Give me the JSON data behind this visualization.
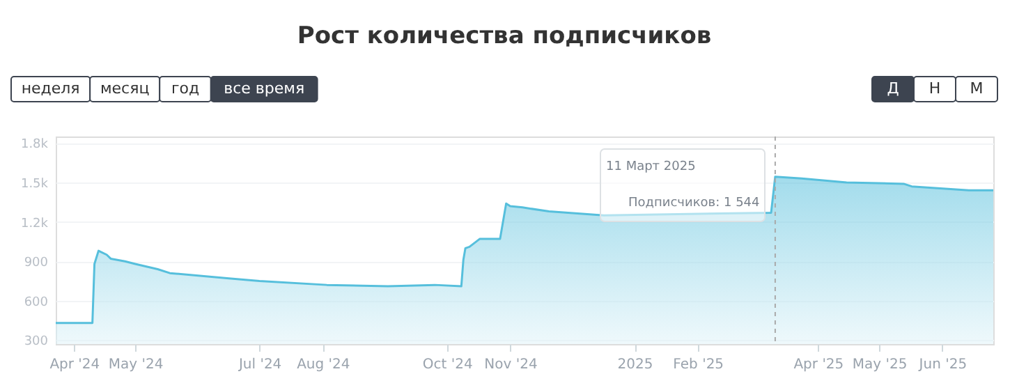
{
  "chart_data": {
    "type": "area",
    "title": "Рост количества подписчиков",
    "annotations": [
      "неделя",
      "месяц",
      "год",
      "все время",
      "Д",
      "Н",
      "М",
      "11 Март 2025",
      "Подписчиков:  1 544"
    ],
    "series": [
      {
        "color": "#56bfdc",
        "x": [
          "2024-03-23",
          "2024-04-01",
          "2024-04-10",
          "2024-04-11",
          "2024-04-13",
          "2024-04-17",
          "2024-04-19",
          "2024-04-26",
          "2024-05-01",
          "2024-05-12",
          "2024-05-18",
          "2024-06-16",
          "2024-07-01",
          "2024-08-03",
          "2024-09-02",
          "2024-09-25",
          "2024-10-08",
          "2024-10-09",
          "2024-10-10",
          "2024-10-12",
          "2024-10-17",
          "2024-10-27",
          "2024-10-30",
          "2024-11-01",
          "2024-11-07",
          "2024-11-20",
          "2024-12-17",
          "2025-03-09",
          "2025-03-11",
          "2025-03-15",
          "2025-03-24",
          "2025-04-15",
          "2025-05-13",
          "2025-05-17",
          "2025-06-14",
          "2025-06-26"
        ],
        "values": [
          430,
          430,
          430,
          880,
          980,
          950,
          920,
          900,
          880,
          840,
          810,
          770,
          750,
          720,
          710,
          720,
          710,
          910,
          1000,
          1010,
          1070,
          1070,
          1340,
          1320,
          1310,
          1280,
          1250,
          1270,
          1544,
          1540,
          1530,
          1500,
          1490,
          1470,
          1440,
          1440
        ]
      }
    ],
    "xlim": [
      "2024-03-23",
      "2025-06-26"
    ],
    "xticks": [
      {
        "value": "2024-04-01",
        "label": "Apr '24"
      },
      {
        "value": "2024-05-01",
        "label": "May '24"
      },
      {
        "value": "2024-07-01",
        "label": "Jul '24"
      },
      {
        "value": "2024-08-01",
        "label": "Aug '24"
      },
      {
        "value": "2024-10-01",
        "label": "Oct '24"
      },
      {
        "value": "2024-11-01",
        "label": "Nov '24"
      },
      {
        "value": "2025-01-01",
        "label": "2025"
      },
      {
        "value": "2025-02-01",
        "label": "Feb '25"
      },
      {
        "value": "2025-04-01",
        "label": "Apr '25"
      },
      {
        "value": "2025-05-01",
        "label": "May '25"
      },
      {
        "value": "2025-06-01",
        "label": "Jun '25"
      }
    ],
    "ylim": [
      270,
      1850
    ],
    "yticks": [
      300,
      600,
      900,
      {
        "value": 1200,
        "label": "1.2k"
      },
      {
        "value": 1500,
        "label": "1.5k"
      },
      {
        "value": 1800,
        "label": "1.8k"
      }
    ],
    "ref_lines": [
      {
        "axis": "x",
        "value": "2025-03-11",
        "color": "#aaaaaa",
        "line_style": "dashed"
      }
    ],
    "grid": "y"
  }
}
